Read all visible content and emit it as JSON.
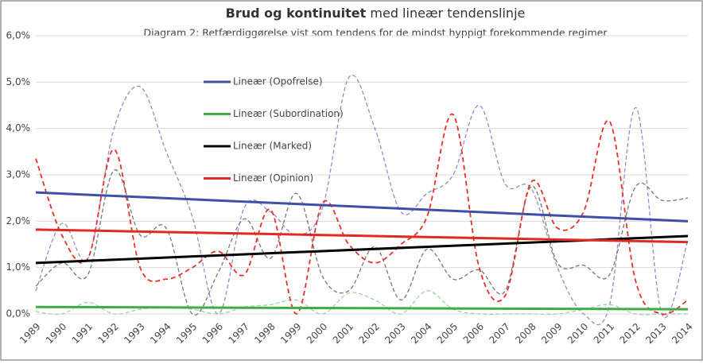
{
  "chart_data": {
    "type": "line",
    "title": {
      "bold": "Brud og kontinuitet",
      "rest": " med lineær tendenslinje"
    },
    "subtitle": "Diagram 2: Retfærdiggørelse vist som tendens for de mindst hyppigt forekommende regimer",
    "categories": [
      "1989",
      "1990",
      "1991",
      "1992",
      "1993",
      "1994",
      "1995",
      "1996",
      "1997",
      "1998",
      "1999",
      "2000",
      "2001",
      "2002",
      "2003",
      "2004",
      "2005",
      "2006",
      "2007",
      "2008",
      "2009",
      "2010",
      "2011",
      "2012",
      "2013",
      "2014"
    ],
    "ylim": [
      0,
      6
    ],
    "yticks": [
      {
        "value": 0,
        "label": "0,0%"
      },
      {
        "value": 1,
        "label": "1,0%"
      },
      {
        "value": 2,
        "label": "2,0%"
      },
      {
        "value": 3,
        "label": "3,0%"
      },
      {
        "value": 4,
        "label": "4,0%"
      },
      {
        "value": 5,
        "label": "5,0%"
      },
      {
        "value": 6,
        "label": "6,0%"
      }
    ],
    "grid": true,
    "series": [
      {
        "color": "#8e8ed6",
        "values": [
          0.5,
          1.95,
          1.2,
          4.0,
          4.9,
          3.5,
          2.1,
          0.0,
          2.3,
          2.2,
          1.7,
          2.3,
          5.1,
          4.0,
          2.2,
          2.6,
          3.0,
          4.5,
          2.8,
          2.7,
          1.0,
          0.0,
          0.2,
          4.45,
          0.0,
          1.6
        ]
      },
      {
        "color": "#9fd49f",
        "values": [
          0.05,
          0.0,
          0.25,
          0.0,
          0.1,
          0.15,
          0.1,
          0.0,
          0.15,
          0.2,
          0.3,
          0.0,
          0.45,
          0.3,
          0.0,
          0.5,
          0.1,
          0.0,
          0.0,
          0.0,
          0.0,
          0.1,
          0.2,
          0.0,
          0.0,
          0.0
        ]
      },
      {
        "color": "#777777",
        "values": [
          0.6,
          1.1,
          0.85,
          3.1,
          1.7,
          1.85,
          0.0,
          0.9,
          2.05,
          1.2,
          2.6,
          0.8,
          0.5,
          1.45,
          0.3,
          1.4,
          0.75,
          0.95,
          0.5,
          2.75,
          1.1,
          1.05,
          0.85,
          2.75,
          2.45,
          2.5
        ]
      },
      {
        "color": "#e8312a",
        "values": [
          3.35,
          1.7,
          1.2,
          3.55,
          1.0,
          0.75,
          1.0,
          1.35,
          0.85,
          2.25,
          0.0,
          2.4,
          1.5,
          1.1,
          1.5,
          2.1,
          4.3,
          1.0,
          0.4,
          2.85,
          1.85,
          2.2,
          4.15,
          0.7,
          0.0,
          0.3
        ]
      }
    ],
    "trendlines": [
      {
        "name": "Lineær (Opofrelse)",
        "color": "#3f4fa8",
        "values": [
          2.62,
          2.0
        ]
      },
      {
        "name": "Lineær (Subordination)",
        "color": "#3cae45",
        "values": [
          0.15,
          0.1
        ]
      },
      {
        "name": "Lineær (Marked)",
        "color": "#000000",
        "values": [
          1.1,
          1.68
        ]
      },
      {
        "name": "Lineær (Opinion)",
        "color": "#e02a22",
        "values": [
          1.82,
          1.55
        ]
      }
    ]
  }
}
